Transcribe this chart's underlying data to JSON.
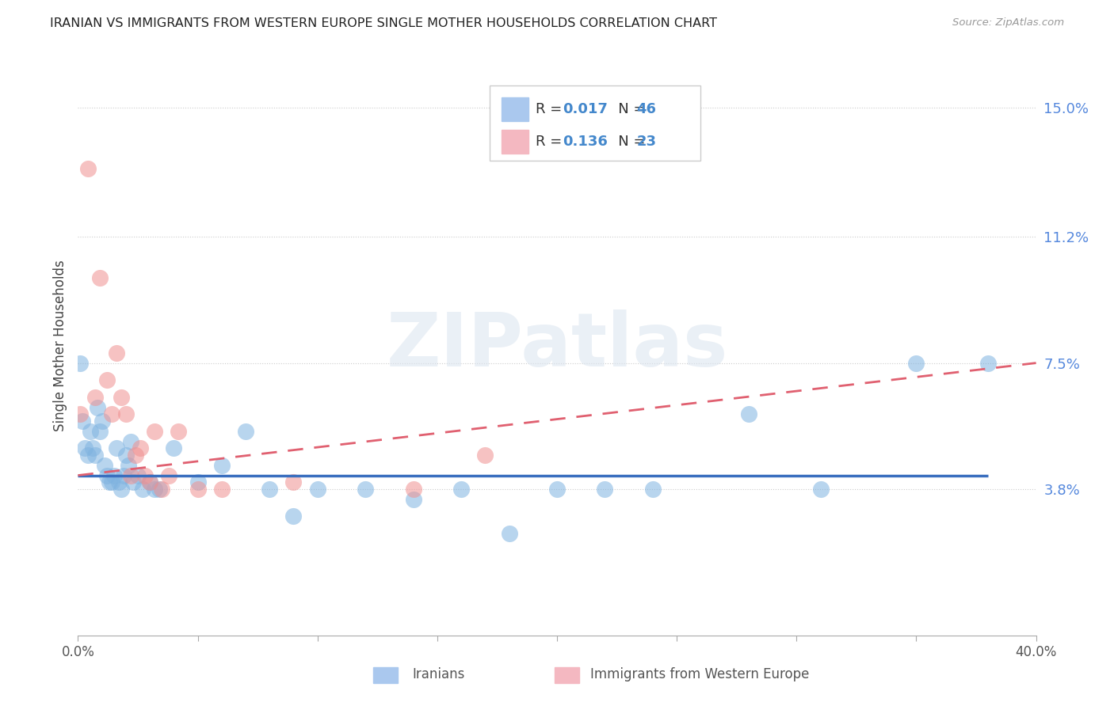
{
  "title": "IRANIAN VS IMMIGRANTS FROM WESTERN EUROPE SINGLE MOTHER HOUSEHOLDS CORRELATION CHART",
  "source": "Source: ZipAtlas.com",
  "ylabel": "Single Mother Households",
  "iranians_color": "#7fb3e0",
  "western_europe_color": "#f09090",
  "iranians_line_color": "#3a6fbf",
  "western_europe_line_color": "#e06070",
  "xlim": [
    0.0,
    0.4
  ],
  "ylim": [
    -0.005,
    0.165
  ],
  "ytick_vals": [
    0.038,
    0.075,
    0.112,
    0.15
  ],
  "ytick_labels": [
    "3.8%",
    "7.5%",
    "11.2%",
    "15.0%"
  ],
  "watermark_text": "ZIPatlas",
  "legend_R1": "0.017",
  "legend_N1": "46",
  "legend_R2": "0.136",
  "legend_N2": "23",
  "legend_color1": "#aac8ee",
  "legend_color2": "#f4b8c1",
  "iranians_x": [
    0.001,
    0.002,
    0.003,
    0.004,
    0.005,
    0.006,
    0.007,
    0.008,
    0.009,
    0.01,
    0.011,
    0.012,
    0.013,
    0.014,
    0.015,
    0.016,
    0.017,
    0.018,
    0.019,
    0.02,
    0.021,
    0.022,
    0.023,
    0.025,
    0.027,
    0.03,
    0.032,
    0.034,
    0.04,
    0.05,
    0.06,
    0.07,
    0.08,
    0.09,
    0.1,
    0.12,
    0.14,
    0.16,
    0.18,
    0.2,
    0.22,
    0.24,
    0.28,
    0.31,
    0.35,
    0.38
  ],
  "iranians_y": [
    0.075,
    0.058,
    0.05,
    0.048,
    0.055,
    0.05,
    0.048,
    0.062,
    0.055,
    0.058,
    0.045,
    0.042,
    0.04,
    0.04,
    0.042,
    0.05,
    0.04,
    0.038,
    0.042,
    0.048,
    0.045,
    0.052,
    0.04,
    0.042,
    0.038,
    0.04,
    0.038,
    0.038,
    0.05,
    0.04,
    0.045,
    0.055,
    0.038,
    0.03,
    0.038,
    0.038,
    0.035,
    0.038,
    0.025,
    0.038,
    0.038,
    0.038,
    0.06,
    0.038,
    0.075,
    0.075
  ],
  "western_x": [
    0.001,
    0.004,
    0.007,
    0.009,
    0.012,
    0.014,
    0.016,
    0.018,
    0.02,
    0.022,
    0.024,
    0.026,
    0.028,
    0.03,
    0.032,
    0.035,
    0.038,
    0.042,
    0.05,
    0.06,
    0.09,
    0.14,
    0.17
  ],
  "western_y": [
    0.06,
    0.132,
    0.065,
    0.1,
    0.07,
    0.06,
    0.078,
    0.065,
    0.06,
    0.042,
    0.048,
    0.05,
    0.042,
    0.04,
    0.055,
    0.038,
    0.042,
    0.055,
    0.038,
    0.038,
    0.04,
    0.038,
    0.048
  ],
  "iran_line_x": [
    0.0,
    0.38
  ],
  "iran_line_y": [
    0.042,
    0.042
  ],
  "west_line_x": [
    0.0,
    0.4
  ],
  "west_line_y_start": 0.042,
  "west_line_y_end": 0.075
}
